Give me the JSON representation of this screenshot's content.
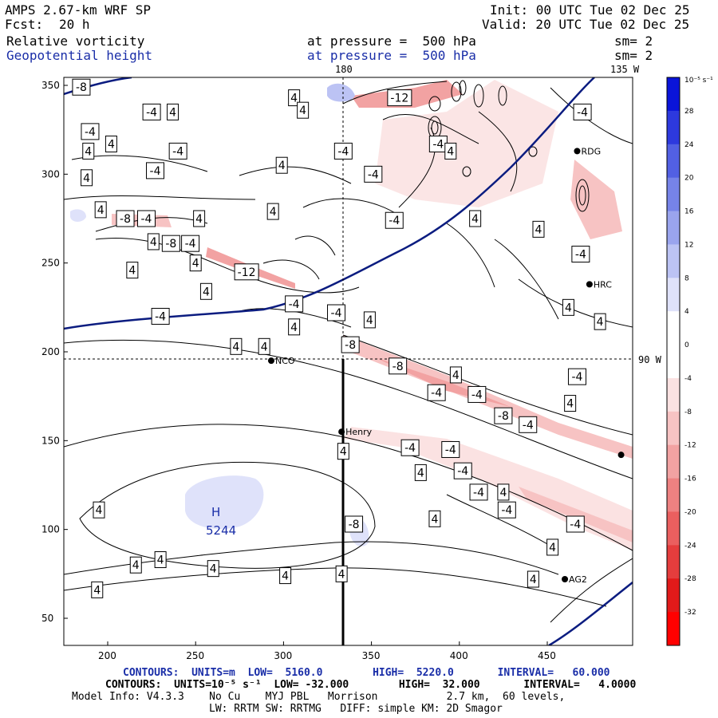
{
  "header": {
    "model": "AMPS 2.67-km WRF SP",
    "fcst_label": "Fcst:",
    "fcst_value": "20 h",
    "init": "Init: 00 UTC Tue 02 Dec 25",
    "valid": "Valid: 20 UTC Tue 02 Dec 25",
    "field1_name": "Relative vorticity",
    "field1_level": "at pressure =  500 hPa",
    "field1_sm": "sm= 2",
    "field2_name": "Geopotential height",
    "field2_level": "at pressure =  500 hPa",
    "field2_sm": "sm= 2"
  },
  "map": {
    "meridian_180": "180",
    "meridian_135w": "135 W",
    "meridian_90w": "90 W",
    "high_label": "H",
    "high_value": "5244",
    "stations": [
      {
        "name": "NCO",
        "x": 293,
        "y": 195
      },
      {
        "name": "Henry",
        "x": 333,
        "y": 155
      },
      {
        "name": "RDG",
        "x": 467,
        "y": 313
      },
      {
        "name": "HRC",
        "x": 474,
        "y": 238
      },
      {
        "name": "AG2",
        "x": 460,
        "y": 72
      },
      {
        "name": "",
        "x": 492,
        "y": 142
      }
    ],
    "contour_labels": [
      {
        "text": "-8",
        "x": 185,
        "y": 349
      },
      {
        "text": "-4",
        "x": 190,
        "y": 324
      },
      {
        "text": "-4",
        "x": 225,
        "y": 335
      },
      {
        "text": "4",
        "x": 237,
        "y": 335
      },
      {
        "text": "4",
        "x": 189,
        "y": 313
      },
      {
        "text": "4",
        "x": 202,
        "y": 317
      },
      {
        "text": "-4",
        "x": 240,
        "y": 313
      },
      {
        "text": "-4",
        "x": 227,
        "y": 302
      },
      {
        "text": "4",
        "x": 188,
        "y": 298
      },
      {
        "text": "4",
        "x": 196,
        "y": 280
      },
      {
        "text": "-8",
        "x": 210,
        "y": 275
      },
      {
        "text": "-4",
        "x": 222,
        "y": 275
      },
      {
        "text": "4",
        "x": 226,
        "y": 262
      },
      {
        "text": "4",
        "x": 252,
        "y": 275
      },
      {
        "text": "4",
        "x": 214,
        "y": 246
      },
      {
        "text": "-8",
        "x": 236,
        "y": 261
      },
      {
        "text": "-4",
        "x": 247,
        "y": 261
      },
      {
        "text": "4",
        "x": 250,
        "y": 250
      },
      {
        "text": "-12",
        "x": 279,
        "y": 245
      },
      {
        "text": "4",
        "x": 256,
        "y": 234
      },
      {
        "text": "-4",
        "x": 230,
        "y": 220
      },
      {
        "text": "4",
        "x": 306,
        "y": 343
      },
      {
        "text": "4",
        "x": 311,
        "y": 336
      },
      {
        "text": "-12",
        "x": 366,
        "y": 343
      },
      {
        "text": "4",
        "x": 299,
        "y": 305
      },
      {
        "text": "4",
        "x": 294,
        "y": 279
      },
      {
        "text": "-4",
        "x": 334,
        "y": 313
      },
      {
        "text": "-4",
        "x": 351,
        "y": 300
      },
      {
        "text": "-4",
        "x": 388,
        "y": 317
      },
      {
        "text": "4",
        "x": 395,
        "y": 313
      },
      {
        "text": "-4",
        "x": 363,
        "y": 274
      },
      {
        "text": "4",
        "x": 409,
        "y": 275
      },
      {
        "text": "-4",
        "x": 306,
        "y": 227
      },
      {
        "text": "4",
        "x": 306,
        "y": 214
      },
      {
        "text": "-4",
        "x": 330,
        "y": 222
      },
      {
        "text": "4",
        "x": 273,
        "y": 203
      },
      {
        "text": "4",
        "x": 289,
        "y": 203
      },
      {
        "text": "-8",
        "x": 338,
        "y": 204
      },
      {
        "text": "-8",
        "x": 365,
        "y": 192
      },
      {
        "text": "4",
        "x": 349,
        "y": 218
      },
      {
        "text": "-4",
        "x": 470,
        "y": 335
      },
      {
        "text": "4",
        "x": 445,
        "y": 269
      },
      {
        "text": "-4",
        "x": 469,
        "y": 255
      },
      {
        "text": "4",
        "x": 462,
        "y": 225
      },
      {
        "text": "4",
        "x": 480,
        "y": 217
      },
      {
        "text": "4",
        "x": 398,
        "y": 187
      },
      {
        "text": "-4",
        "x": 387,
        "y": 177
      },
      {
        "text": "-4",
        "x": 410,
        "y": 176
      },
      {
        "text": "-4",
        "x": 467,
        "y": 186
      },
      {
        "text": "4",
        "x": 463,
        "y": 171
      },
      {
        "text": "-8",
        "x": 425,
        "y": 164
      },
      {
        "text": "-4",
        "x": 439,
        "y": 159
      },
      {
        "text": "4",
        "x": 334,
        "y": 144
      },
      {
        "text": "-4",
        "x": 372,
        "y": 146
      },
      {
        "text": "-4",
        "x": 395,
        "y": 145
      },
      {
        "text": "-4",
        "x": 402,
        "y": 133
      },
      {
        "text": "4",
        "x": 378,
        "y": 132
      },
      {
        "text": "-4",
        "x": 411,
        "y": 121
      },
      {
        "text": "-4",
        "x": 427,
        "y": 111
      },
      {
        "text": "4",
        "x": 386,
        "y": 106
      },
      {
        "text": "4",
        "x": 425,
        "y": 121
      },
      {
        "text": "-4",
        "x": 466,
        "y": 103
      },
      {
        "text": "4",
        "x": 453,
        "y": 90
      },
      {
        "text": "4",
        "x": 442,
        "y": 72
      },
      {
        "text": "4",
        "x": 195,
        "y": 111
      },
      {
        "text": "-8",
        "x": 340,
        "y": 103
      },
      {
        "text": "4",
        "x": 230,
        "y": 83
      },
      {
        "text": "4",
        "x": 260,
        "y": 78
      },
      {
        "text": "4",
        "x": 301,
        "y": 74
      },
      {
        "text": "4",
        "x": 333,
        "y": 75
      },
      {
        "text": "4",
        "x": 216,
        "y": 80
      },
      {
        "text": "4",
        "x": 194,
        "y": 66
      }
    ]
  },
  "colorbar": {
    "units": "10⁻⁵ s⁻¹",
    "levels": [
      "32",
      "28",
      "24",
      "20",
      "16",
      "12",
      "8",
      "4",
      "0",
      "-4",
      "-8",
      "-12",
      "-16",
      "-20",
      "-24",
      "-28",
      "-32"
    ],
    "colors": [
      "#0a14d9",
      "#2d39de",
      "#5260e3",
      "#7683e8",
      "#9aa4ee",
      "#bcc3f4",
      "#dfe2fa",
      "#ffffff",
      "#ffffff",
      "#fbe2e2",
      "#f7c3c3",
      "#f2a2a2",
      "#ee8181",
      "#ea5f5f",
      "#e53d3d",
      "#e11a1a",
      "#ff0000"
    ]
  },
  "axes": {
    "x_ticks": [
      "200",
      "250",
      "300",
      "350",
      "400",
      "450"
    ],
    "y_ticks": [
      "350",
      "300",
      "250",
      "200",
      "150",
      "100",
      "50"
    ]
  },
  "footer": {
    "line1": "CONTOURS:  UNITS=m  LOW=  5160.0        HIGH=  5220.0       INTERVAL=   60.000",
    "line2": "CONTOURS:  UNITS=10⁻⁵ s⁻¹  LOW= -32.000        HIGH=  32.000       INTERVAL=   4.0000",
    "line3": "Model Info: V4.3.3    No Cu    MYJ PBL   Morrison           2.7 km,  60 levels,",
    "line4": "LW: RRTM SW: RRTMG   DIFF: simple KM: 2D Smagor"
  }
}
